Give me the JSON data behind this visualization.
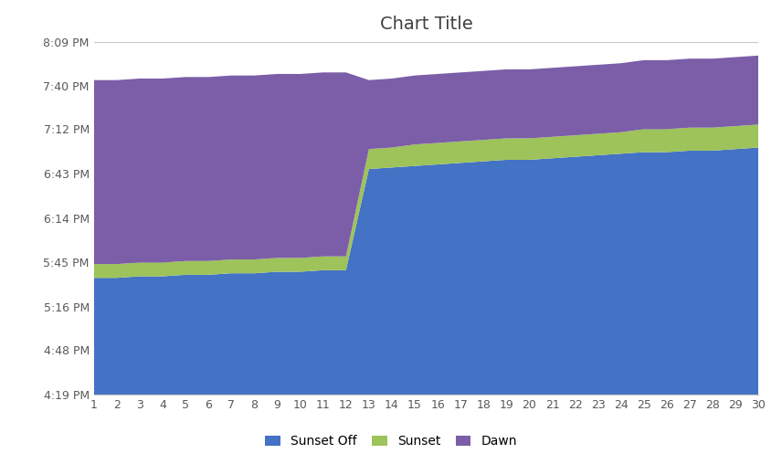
{
  "title": "Chart Title",
  "x_values": [
    1,
    2,
    3,
    4,
    5,
    6,
    7,
    8,
    9,
    10,
    11,
    12,
    13,
    14,
    15,
    16,
    17,
    18,
    19,
    20,
    21,
    22,
    23,
    24,
    25,
    26,
    27,
    28,
    29,
    30
  ],
  "sunset_off": [
    335,
    335,
    336,
    336,
    337,
    337,
    338,
    338,
    339,
    339,
    340,
    340,
    406,
    407,
    408,
    409,
    410,
    411,
    412,
    412,
    413,
    414,
    415,
    416,
    417,
    417,
    418,
    418,
    419,
    420
  ],
  "sunset": [
    9,
    9,
    9,
    9,
    9,
    9,
    9,
    9,
    9,
    9,
    9,
    9,
    13,
    13,
    14,
    14,
    14,
    14,
    14,
    14,
    14,
    14,
    14,
    14,
    15,
    15,
    15,
    15,
    15,
    15
  ],
  "dawn": [
    120,
    120,
    120,
    120,
    120,
    120,
    120,
    120,
    120,
    120,
    120,
    120,
    45,
    45,
    45,
    45,
    45,
    45,
    45,
    45,
    45,
    45,
    45,
    45,
    45,
    45,
    45,
    45,
    45,
    45
  ],
  "colors": {
    "sunset_off": "#4472C4",
    "sunset": "#9DC35A",
    "dawn": "#7B5EA7"
  },
  "y_ticks": [
    259,
    288,
    316,
    345,
    374,
    403,
    432,
    460,
    489
  ],
  "y_tick_labels": [
    "4:19 PM",
    "4:48 PM",
    "5:16 PM",
    "5:45 PM",
    "6:14 PM",
    "6:43 PM",
    "7:12 PM",
    "7:40 PM",
    "8:09 PM"
  ],
  "y_min": 259,
  "y_max": 489,
  "legend_labels": [
    "Sunset Off",
    "Sunset",
    "Dawn"
  ],
  "background_color": "#FFFFFF",
  "title_color": "#404040",
  "tick_color": "#595959",
  "grid_color": "#C8C8C8"
}
